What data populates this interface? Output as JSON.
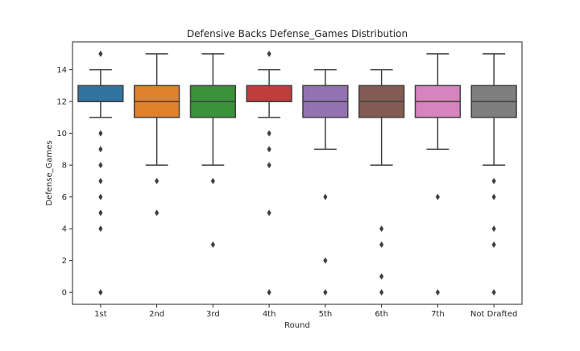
{
  "chart_data": {
    "type": "box",
    "title": "Defensive Backs Defense_Games Distribution",
    "xlabel": "Round",
    "ylabel": "Defense_Games",
    "ylim": [
      -0.75,
      15.75
    ],
    "yticks": [
      0,
      2,
      4,
      6,
      8,
      10,
      12,
      14
    ],
    "grid": false,
    "categories": [
      "1st",
      "2nd",
      "3rd",
      "4th",
      "5th",
      "6th",
      "7th",
      "Not Drafted"
    ],
    "colors": [
      "#3274a1",
      "#e1812c",
      "#3a923a",
      "#c03d3e",
      "#9372b2",
      "#845b53",
      "#d684bd",
      "#7f7f7f"
    ],
    "boxes": [
      {
        "category": "1st",
        "whisker_low": 11,
        "q1": 12,
        "median": 12,
        "q3": 13,
        "whisker_high": 14,
        "outliers": [
          15,
          10,
          9,
          8,
          7,
          6,
          5,
          4,
          0
        ]
      },
      {
        "category": "2nd",
        "whisker_low": 8,
        "q1": 11,
        "median": 12,
        "q3": 13,
        "whisker_high": 15,
        "outliers": [
          7,
          5
        ]
      },
      {
        "category": "3rd",
        "whisker_low": 8,
        "q1": 11,
        "median": 12,
        "q3": 13,
        "whisker_high": 15,
        "outliers": [
          7,
          3
        ]
      },
      {
        "category": "4th",
        "whisker_low": 11,
        "q1": 12,
        "median": 12,
        "q3": 13,
        "whisker_high": 14,
        "outliers": [
          15,
          10,
          9,
          8,
          5,
          0
        ]
      },
      {
        "category": "5th",
        "whisker_low": 9,
        "q1": 11,
        "median": 12,
        "q3": 13,
        "whisker_high": 14,
        "outliers": [
          6,
          2,
          0
        ]
      },
      {
        "category": "6th",
        "whisker_low": 8,
        "q1": 11,
        "median": 12,
        "q3": 13,
        "whisker_high": 14,
        "outliers": [
          4,
          3,
          1,
          0
        ]
      },
      {
        "category": "7th",
        "whisker_low": 9,
        "q1": 11,
        "median": 12,
        "q3": 13,
        "whisker_high": 15,
        "outliers": [
          6,
          0
        ]
      },
      {
        "category": "Not Drafted",
        "whisker_low": 8,
        "q1": 11,
        "median": 12,
        "q3": 13,
        "whisker_high": 15,
        "outliers": [
          7,
          6,
          4,
          3,
          0
        ]
      }
    ]
  }
}
